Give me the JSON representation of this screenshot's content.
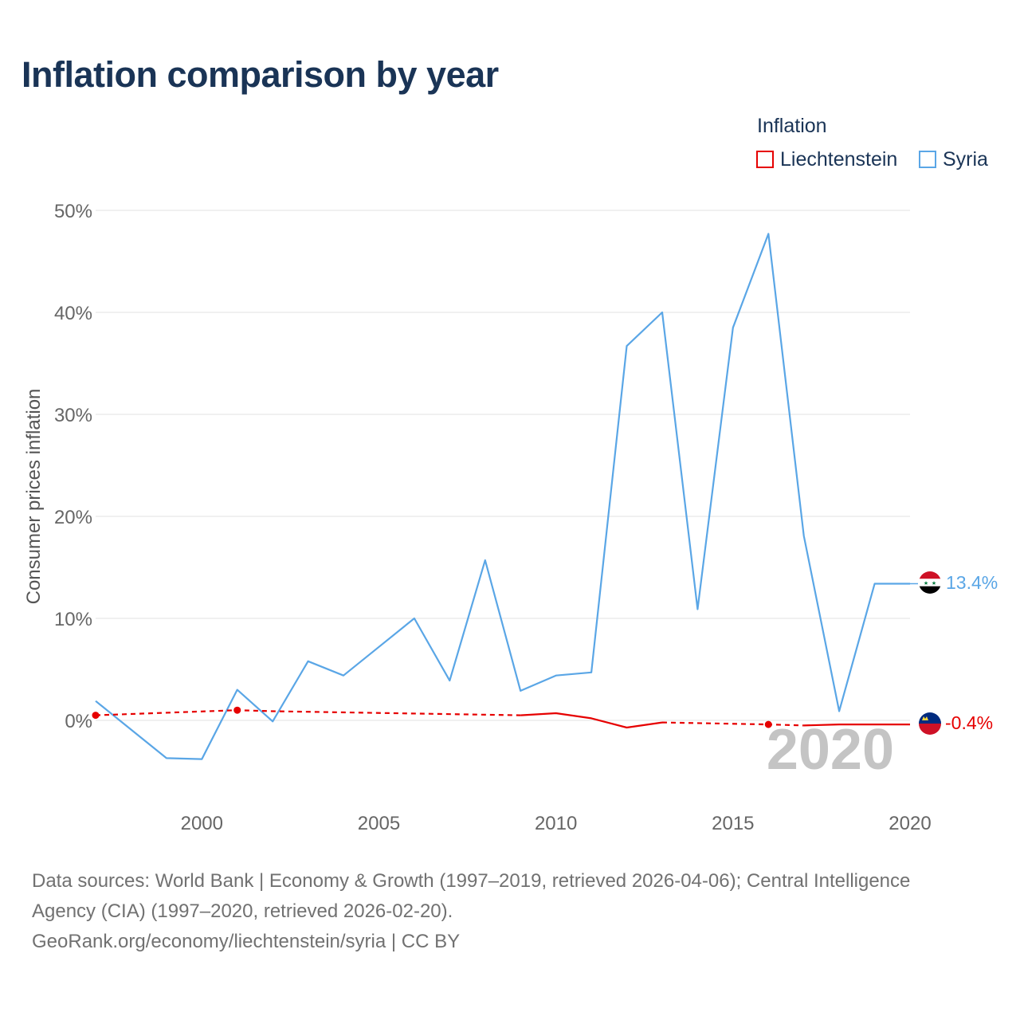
{
  "title": "Inflation comparison by year",
  "legend": {
    "title": "Inflation",
    "items": [
      {
        "name": "Liechtenstein",
        "color": "#e60000"
      },
      {
        "name": "Syria",
        "color": "#5aa6e6"
      }
    ]
  },
  "year_watermark": "2020",
  "end_labels": {
    "syria": "13.4%",
    "liechtenstein": "-0.4%"
  },
  "footer": {
    "line1": "Data sources: World Bank | Economy & Growth (1997–2019, retrieved 2026-04-06); Central Intelligence",
    "line2": "Agency (CIA) (1997–2020, retrieved 2026-02-20).",
    "line3": "GeoRank.org/economy/liechtenstein/syria | CC BY"
  },
  "chart_data": {
    "type": "line",
    "title": "Inflation comparison by year",
    "ylabel": "Consumer prices inflation",
    "xlabel": "",
    "xlim": [
      1997,
      2020
    ],
    "ylim": [
      -7,
      50
    ],
    "y_ticks": [
      0,
      10,
      20,
      30,
      40,
      50
    ],
    "y_tick_labels": [
      "0%",
      "10%",
      "20%",
      "30%",
      "40%",
      "50%"
    ],
    "x_ticks": [
      2000,
      2005,
      2010,
      2015,
      2020
    ],
    "x_tick_labels": [
      "2000",
      "2005",
      "2010",
      "2015",
      "2020"
    ],
    "grid": true,
    "legend_position": "top-right",
    "series": [
      {
        "name": "Syria",
        "color": "#5aa6e6",
        "points": [
          [
            1997,
            1.9
          ],
          [
            1998,
            -0.9
          ],
          [
            1999,
            -3.7
          ],
          [
            2000,
            -3.8
          ],
          [
            2001,
            3.0
          ],
          [
            2002,
            -0.1
          ],
          [
            2003,
            5.8
          ],
          [
            2004,
            4.4
          ],
          [
            2005,
            7.2
          ],
          [
            2006,
            10.0
          ],
          [
            2007,
            3.9
          ],
          [
            2008,
            15.7
          ],
          [
            2009,
            2.9
          ],
          [
            2010,
            4.4
          ],
          [
            2011,
            4.7
          ],
          [
            2012,
            36.7
          ],
          [
            2013,
            40.0
          ],
          [
            2014,
            10.9
          ],
          [
            2015,
            38.5
          ],
          [
            2016,
            47.7
          ],
          [
            2017,
            18.1
          ],
          [
            2018,
            0.9
          ],
          [
            2019,
            13.4
          ],
          [
            2020,
            13.4
          ]
        ]
      },
      {
        "name": "Liechtenstein",
        "color": "#e60000",
        "points": [
          [
            1997,
            0.5
          ],
          [
            2001,
            1.0
          ],
          [
            2002,
            0.9
          ],
          [
            2009,
            0.5
          ],
          [
            2010,
            0.7
          ],
          [
            2011,
            0.2
          ],
          [
            2012,
            -0.7
          ],
          [
            2013,
            -0.2
          ],
          [
            2016,
            -0.4
          ],
          [
            2017,
            -0.5
          ],
          [
            2018,
            -0.4
          ],
          [
            2019,
            -0.4
          ],
          [
            2020,
            -0.4
          ]
        ],
        "segments": [
          {
            "style": "dashed",
            "from": 1997,
            "to": 2009
          },
          {
            "style": "solid",
            "from": 2009,
            "to": 2013
          },
          {
            "style": "dashed",
            "from": 2013,
            "to": 2017
          },
          {
            "style": "solid",
            "from": 2017,
            "to": 2020
          }
        ],
        "markers": [
          1997,
          2001,
          2016
        ]
      }
    ]
  }
}
